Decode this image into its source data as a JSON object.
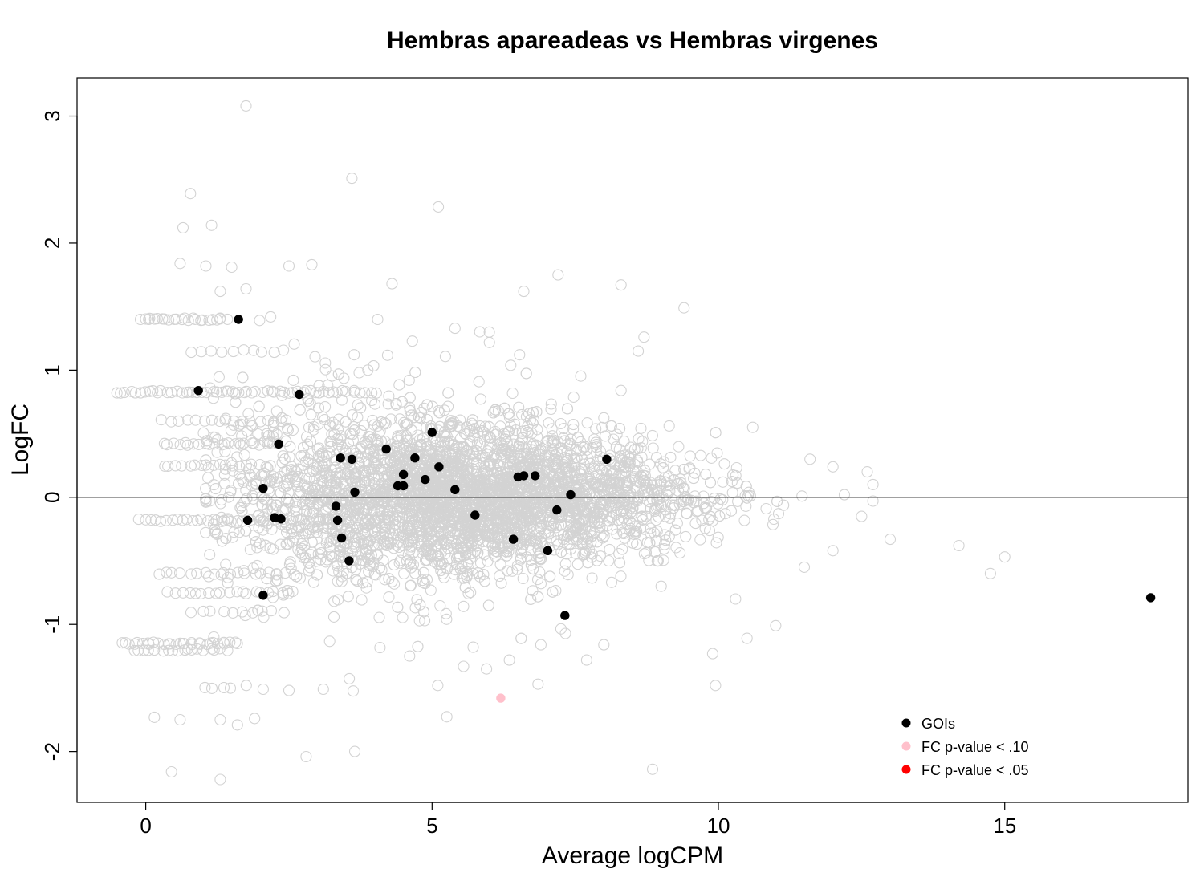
{
  "chart_data": {
    "type": "scatter",
    "title": "Hembras apareadeas vs Hembras virgenes",
    "xlabel": "Average logCPM",
    "ylabel": "LogFC",
    "xlim": [
      -1.2,
      18.2
    ],
    "ylim": [
      -2.4,
      3.3
    ],
    "x_ticks": [
      0,
      5,
      10,
      15
    ],
    "y_ticks": [
      -2,
      -1,
      0,
      1,
      2,
      3
    ],
    "reference_line_y": 0,
    "grid": false,
    "legend_position": "bottom-right",
    "legend": [
      {
        "label": "GOIs",
        "color": "#000000"
      },
      {
        "label": "FC p-value < .10",
        "color": "#ffc0cb"
      },
      {
        "label": " FC p-value < .05",
        "color": "#ff0000"
      }
    ],
    "colors": {
      "background_points": "#d3d3d3",
      "goi": "#000000",
      "p10": "#ffc0cb",
      "p05": "#ff0000"
    },
    "series": [
      {
        "name": "GOIs",
        "color": "#000000",
        "points": [
          [
            1.62,
            1.4
          ],
          [
            0.92,
            0.84
          ],
          [
            2.68,
            0.81
          ],
          [
            2.32,
            0.42
          ],
          [
            3.4,
            0.31
          ],
          [
            3.6,
            0.3
          ],
          [
            4.2,
            0.38
          ],
          [
            4.7,
            0.31
          ],
          [
            5.0,
            0.51
          ],
          [
            5.12,
            0.24
          ],
          [
            4.88,
            0.14
          ],
          [
            4.5,
            0.18
          ],
          [
            4.4,
            0.09
          ],
          [
            4.5,
            0.09
          ],
          [
            5.4,
            0.06
          ],
          [
            3.65,
            0.04
          ],
          [
            2.05,
            0.07
          ],
          [
            8.05,
            0.3
          ],
          [
            6.5,
            0.16
          ],
          [
            6.6,
            0.17
          ],
          [
            6.8,
            0.17
          ],
          [
            7.42,
            0.02
          ],
          [
            7.18,
            -0.1
          ],
          [
            3.32,
            -0.07
          ],
          [
            3.35,
            -0.18
          ],
          [
            1.78,
            -0.18
          ],
          [
            2.25,
            -0.16
          ],
          [
            2.36,
            -0.17
          ],
          [
            5.75,
            -0.14
          ],
          [
            3.42,
            -0.32
          ],
          [
            6.42,
            -0.33
          ],
          [
            7.02,
            -0.42
          ],
          [
            3.55,
            -0.5
          ],
          [
            2.05,
            -0.77
          ],
          [
            7.32,
            -0.93
          ],
          [
            17.55,
            -0.79
          ]
        ]
      },
      {
        "name": "FC p-value < .10",
        "color": "#ffc0cb",
        "points": [
          [
            6.2,
            -1.58
          ]
        ]
      },
      {
        "name": "FC p-value < .05",
        "color": "#ff0000",
        "points": []
      }
    ],
    "background_outliers": [
      [
        1.75,
        3.08
      ],
      [
        3.6,
        2.51
      ],
      [
        0.78,
        2.39
      ],
      [
        1.15,
        2.14
      ],
      [
        0.65,
        2.12
      ],
      [
        2.5,
        1.82
      ],
      [
        2.9,
        1.83
      ],
      [
        0.6,
        1.84
      ],
      [
        1.05,
        1.82
      ],
      [
        1.5,
        1.81
      ],
      [
        1.75,
        1.64
      ],
      [
        4.3,
        1.68
      ],
      [
        7.2,
        1.75
      ],
      [
        8.3,
        1.67
      ],
      [
        9.4,
        1.49
      ],
      [
        6.6,
        1.62
      ],
      [
        4.05,
        1.4
      ],
      [
        1.3,
        1.62
      ],
      [
        5.4,
        1.33
      ],
      [
        6.0,
        1.3
      ],
      [
        8.7,
        1.26
      ],
      [
        8.6,
        1.15
      ],
      [
        8.3,
        0.84
      ],
      [
        10.6,
        0.55
      ],
      [
        11.6,
        0.3
      ],
      [
        12.0,
        0.24
      ],
      [
        12.6,
        0.2
      ],
      [
        12.7,
        0.1
      ],
      [
        12.7,
        -0.03
      ],
      [
        12.2,
        0.02
      ],
      [
        12.5,
        -0.15
      ],
      [
        12.0,
        -0.42
      ],
      [
        13.0,
        -0.33
      ],
      [
        14.2,
        -0.38
      ],
      [
        15.0,
        -0.47
      ],
      [
        14.75,
        -0.6
      ],
      [
        11.0,
        -1.01
      ],
      [
        10.5,
        -1.11
      ],
      [
        9.9,
        -1.23
      ],
      [
        9.95,
        -1.48
      ],
      [
        8.85,
        -2.14
      ],
      [
        3.65,
        -2.0
      ],
      [
        2.8,
        -2.04
      ],
      [
        1.3,
        -2.22
      ],
      [
        0.45,
        -2.16
      ],
      [
        0.15,
        -1.73
      ],
      [
        0.6,
        -1.75
      ],
      [
        1.3,
        -1.75
      ],
      [
        1.6,
        -1.79
      ],
      [
        1.9,
        -1.74
      ],
      [
        2.05,
        -1.51
      ],
      [
        2.5,
        -1.52
      ],
      [
        3.1,
        -1.51
      ],
      [
        5.1,
        -1.48
      ],
      [
        6.85,
        -1.47
      ],
      [
        5.55,
        -1.33
      ],
      [
        5.95,
        -1.35
      ],
      [
        6.35,
        -1.28
      ],
      [
        7.7,
        -1.28
      ],
      [
        8.0,
        -1.16
      ],
      [
        6.9,
        -1.16
      ],
      [
        10.3,
        -0.8
      ],
      [
        9.0,
        -0.7
      ],
      [
        11.5,
        -0.55
      ]
    ],
    "background_bands": [
      {
        "y": 0.83,
        "x_from": -0.5,
        "x_to": 4.0,
        "n": 58
      },
      {
        "y": -0.18,
        "x_from": -0.1,
        "x_to": 4.3,
        "n": 50
      },
      {
        "y": -1.15,
        "x_from": -0.4,
        "x_to": 1.6,
        "n": 30
      },
      {
        "y": -1.2,
        "x_from": -0.2,
        "x_to": 1.4,
        "n": 18
      },
      {
        "y": 1.4,
        "x_from": -0.1,
        "x_to": 1.4,
        "n": 24
      },
      {
        "y": 0.42,
        "x_from": 0.3,
        "x_to": 2.2,
        "n": 22
      },
      {
        "y": -0.75,
        "x_from": 0.4,
        "x_to": 2.6,
        "n": 20
      },
      {
        "y": -0.6,
        "x_from": 0.2,
        "x_to": 2.6,
        "n": 18
      },
      {
        "y": 0.25,
        "x_from": 0.3,
        "x_to": 2.2,
        "n": 18
      },
      {
        "y": 0.6,
        "x_from": 0.3,
        "x_to": 2.4,
        "n": 16
      },
      {
        "y": 1.15,
        "x_from": 0.8,
        "x_to": 2.4,
        "n": 10
      },
      {
        "y": -1.5,
        "x_from": 1.0,
        "x_to": 1.5,
        "n": 4
      },
      {
        "y": -0.9,
        "x_from": 0.8,
        "x_to": 2.4,
        "n": 10
      }
    ],
    "background_cloud": {
      "n": 4200,
      "x_range": [
        1.0,
        12.5
      ],
      "center_x": 5.5,
      "sd_y_at_low": 0.4,
      "sd_y_at_high": 0.12
    }
  }
}
